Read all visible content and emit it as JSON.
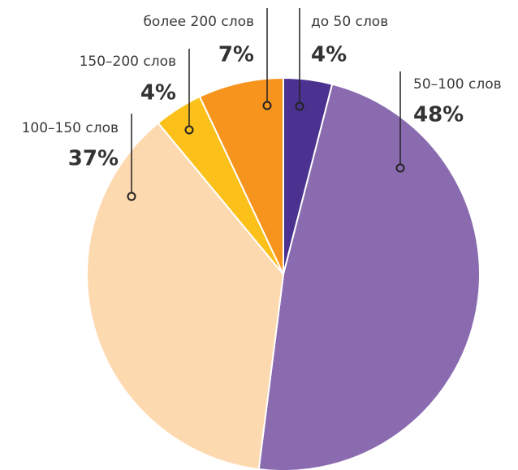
{
  "chart_data": {
    "type": "pie",
    "categories": [
      "до 50 слов",
      "50–100 слов",
      "100–150 слов",
      "150–200 слов",
      "более 200 слов"
    ],
    "values": [
      4,
      48,
      37,
      4,
      7
    ],
    "value_labels": [
      "4%",
      "48%",
      "37%",
      "4%",
      "7%"
    ],
    "colors": [
      "#4b3190",
      "#8a6baf",
      "#fdd9b0",
      "#fcc01a",
      "#f7941d"
    ]
  }
}
